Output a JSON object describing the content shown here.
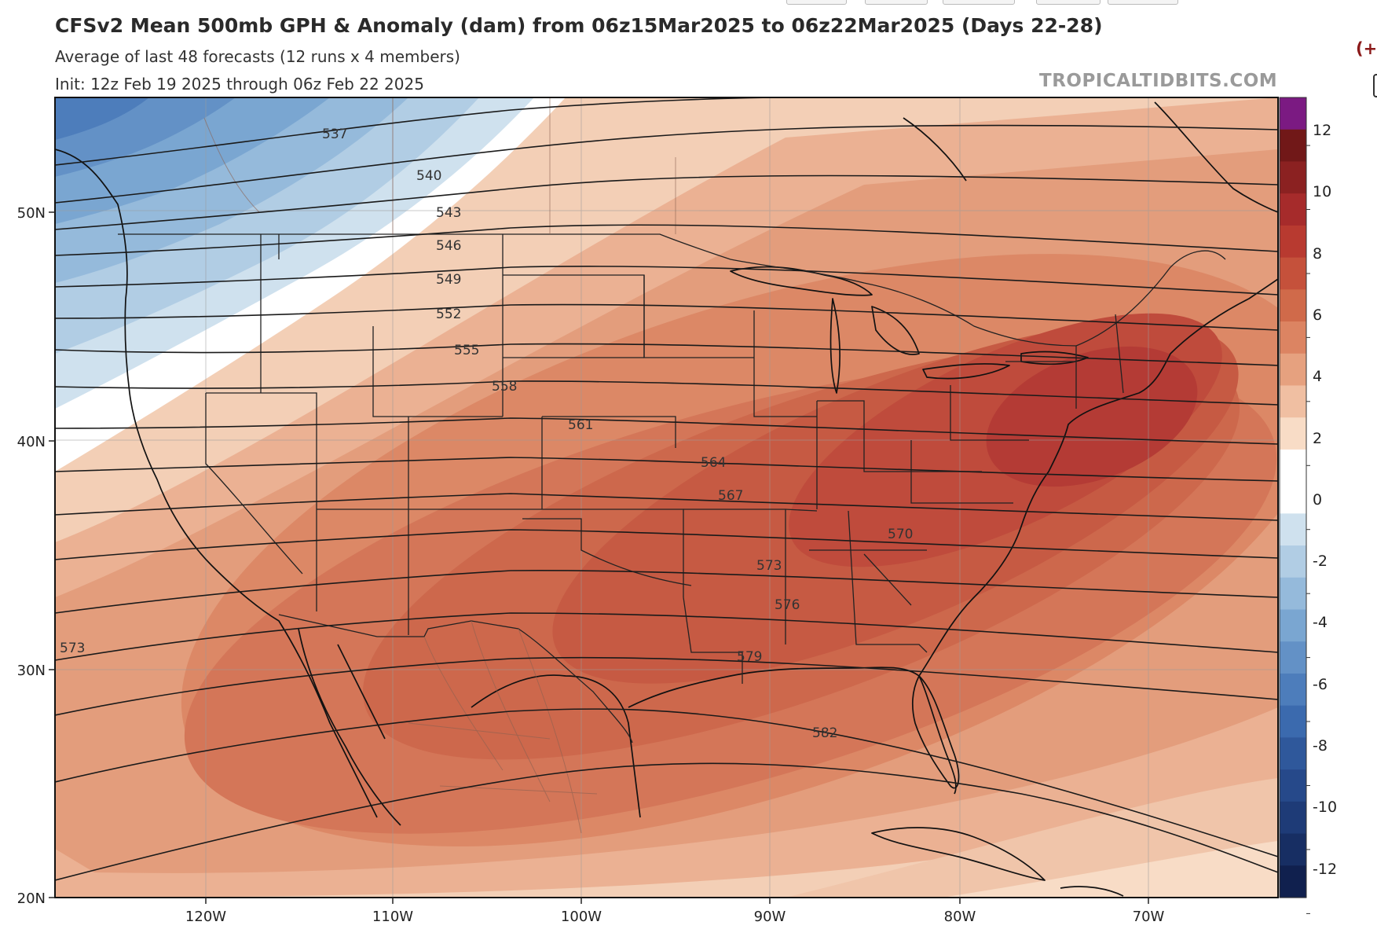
{
  "header": {
    "title": "CFSv2 Mean 500mb GPH & Anomaly (dam) from 06z15Mar2025 to 06z22Mar2025 (Days 22-28)",
    "subtitle": "Average of last 48 forecasts (12 runs x 4 members)",
    "init": "Init: 12z Feb 19 2025 through 06z Feb 22 2025",
    "site": "TROPICALTIDBITS.COM"
  },
  "edge_fragment": "(+",
  "map": {
    "region": "Contiguous United States, southern Canada, northern Mexico",
    "lat_labels": [
      "50N",
      "40N",
      "30N",
      "20N"
    ],
    "lon_labels": [
      "120W",
      "110W",
      "100W",
      "90W",
      "80W",
      "70W"
    ],
    "anomaly_max_center": "Mid-Atlantic / Pennsylvania",
    "anomaly_min_center": "Pacific Northwest / British Columbia"
  },
  "contour_labels": [
    "537",
    "540",
    "543",
    "546",
    "549",
    "552",
    "555",
    "558",
    "561",
    "564",
    "567",
    "570",
    "573",
    "576",
    "579",
    "582",
    "573"
  ],
  "colorbar": {
    "ticks": [
      "12",
      "10",
      "8",
      "6",
      "4",
      "2",
      "0",
      "-2",
      "-4",
      "-6",
      "-8",
      "-10",
      "-12"
    ],
    "colors": [
      "#7b1a82",
      "#711818",
      "#8b2121",
      "#a62b2b",
      "#b83a30",
      "#c5513b",
      "#d06a4a",
      "#dc8462",
      "#e6a17f",
      "#f0bfa2",
      "#f8dcc6",
      "#ffffff",
      "#ffffff",
      "#cfe1ee",
      "#b1cde4",
      "#95badb",
      "#7aa6d1",
      "#6391c6",
      "#4d7dbb",
      "#3b6aae",
      "#2f589b",
      "#26498a",
      "#1e3b77",
      "#172e63",
      "#10204e"
    ]
  }
}
